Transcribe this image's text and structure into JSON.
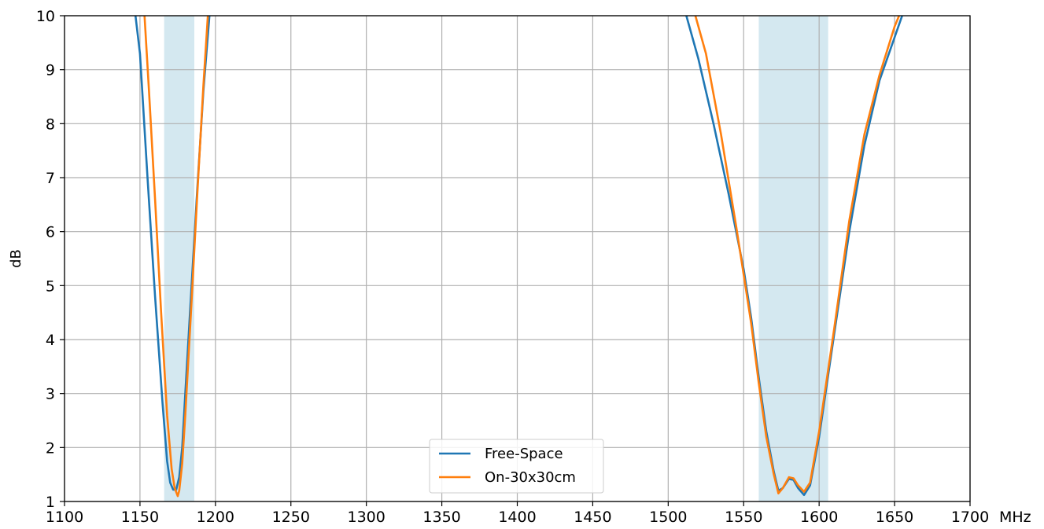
{
  "chart_data": {
    "type": "line",
    "title": "",
    "xlabel": "MHz",
    "ylabel": "dB",
    "xlim": [
      1100,
      1700
    ],
    "ylim": [
      1,
      10
    ],
    "x_ticks": [
      1100,
      1150,
      1200,
      1250,
      1300,
      1350,
      1400,
      1450,
      1500,
      1550,
      1600,
      1650,
      1700
    ],
    "y_ticks": [
      1,
      2,
      3,
      4,
      5,
      6,
      7,
      8,
      9,
      10
    ],
    "grid": true,
    "legend_position": "bottom-center",
    "shaded_bands": [
      {
        "x_start": 1166,
        "x_end": 1186,
        "color": "#d4e8f0"
      },
      {
        "x_start": 1560,
        "x_end": 1606,
        "color": "#d4e8f0"
      }
    ],
    "series": [
      {
        "name": "Free-Space",
        "color": "#1f77b4",
        "segments": [
          {
            "x": [
              1147,
              1150,
              1155,
              1160,
              1165,
              1168,
              1170,
              1172,
              1174,
              1176,
              1178,
              1180,
              1184,
              1188,
              1192,
              1196
            ],
            "y": [
              10,
              9.3,
              7.0,
              4.8,
              2.8,
              1.75,
              1.35,
              1.22,
              1.22,
              1.45,
              2.0,
              3.0,
              4.9,
              6.8,
              8.6,
              10
            ]
          },
          {
            "x": [
              1512,
              1520,
              1530,
              1540,
              1550,
              1555,
              1560,
              1565,
              1570,
              1573,
              1576,
              1580,
              1583,
              1586,
              1590,
              1594,
              1600,
              1610,
              1620,
              1630,
              1640,
              1650,
              1655
            ],
            "y": [
              10,
              9.2,
              8.0,
              6.7,
              5.3,
              4.4,
              3.3,
              2.3,
              1.55,
              1.2,
              1.25,
              1.42,
              1.4,
              1.25,
              1.12,
              1.3,
              2.2,
              4.1,
              6.0,
              7.6,
              8.8,
              9.6,
              10
            ]
          }
        ]
      },
      {
        "name": "On-30x30cm",
        "color": "#ff7f0e",
        "segments": [
          {
            "x": [
              1153,
              1156,
              1160,
              1164,
              1168,
              1171,
              1173,
              1175,
              1176,
              1178,
              1180,
              1184,
              1188,
              1192,
              1195
            ],
            "y": [
              10,
              8.6,
              6.6,
              4.5,
              2.6,
              1.6,
              1.25,
              1.1,
              1.2,
              1.7,
              2.6,
              4.6,
              6.7,
              8.7,
              10
            ]
          },
          {
            "x": [
              1518,
              1525,
              1535,
              1545,
              1550,
              1555,
              1560,
              1565,
              1570,
              1573,
              1576,
              1580,
              1583,
              1586,
              1590,
              1594,
              1600,
              1610,
              1620,
              1630,
              1640,
              1650,
              1653
            ],
            "y": [
              10,
              9.3,
              7.8,
              6.1,
              5.2,
              4.3,
              3.2,
              2.2,
              1.5,
              1.15,
              1.25,
              1.45,
              1.43,
              1.3,
              1.18,
              1.35,
              2.3,
              4.2,
              6.2,
              7.8,
              8.9,
              9.8,
              10
            ]
          }
        ]
      }
    ]
  }
}
